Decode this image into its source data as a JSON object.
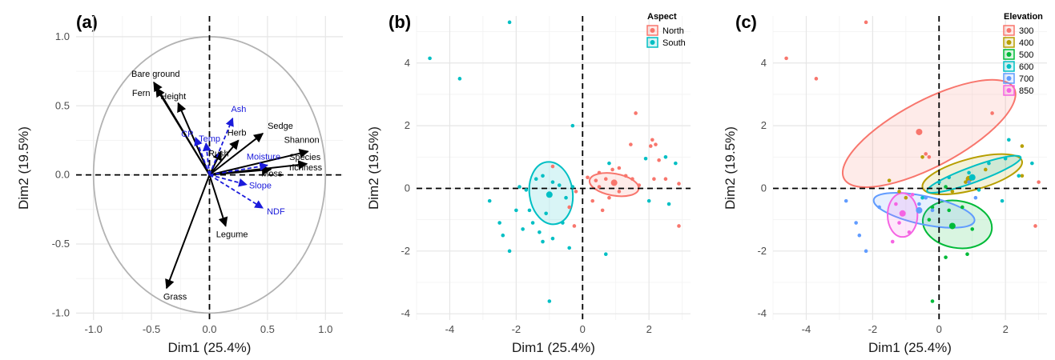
{
  "chart_data": [
    {
      "panel": "(a)",
      "type": "biplot",
      "xlabel": "Dim1 (25.4%)",
      "ylabel": "Dim2 (19.5%)",
      "xlim": [
        -1.15,
        1.15
      ],
      "ylim": [
        -1.05,
        1.15
      ],
      "xticks": [
        -1.0,
        -0.5,
        0.0,
        0.5,
        1.0
      ],
      "yticks": [
        -1.0,
        -0.5,
        0.0,
        0.5,
        1.0
      ],
      "xtick_labels": [
        "-1.0",
        "-0.5",
        "0.0",
        "0.5",
        "1.0"
      ],
      "ytick_labels": [
        "-1.0",
        "-0.5",
        "0.0",
        "0.5",
        "1.0"
      ],
      "circle_radius": 1.0,
      "grid": true,
      "colors": {
        "active": "#000000",
        "supplementary": "#1a1adb",
        "circle": "#b3b3b3"
      },
      "vectors": [
        {
          "name": "Bare ground",
          "x": -0.48,
          "y": 0.67,
          "style": "active"
        },
        {
          "name": "Fern",
          "x": -0.46,
          "y": 0.63,
          "style": "active"
        },
        {
          "name": "Height",
          "x": -0.27,
          "y": 0.52,
          "style": "active"
        },
        {
          "name": "Herb",
          "x": 0.25,
          "y": 0.25,
          "style": "active"
        },
        {
          "name": "Sedge",
          "x": 0.46,
          "y": 0.3,
          "style": "active"
        },
        {
          "name": "Rush",
          "x": 0.1,
          "y": 0.17,
          "style": "active"
        },
        {
          "name": "Shannon",
          "x": 0.85,
          "y": 0.17,
          "style": "active"
        },
        {
          "name": "Species richness",
          "x": 0.84,
          "y": 0.08,
          "style": "active"
        },
        {
          "name": "Moss",
          "x": 0.53,
          "y": 0.04,
          "style": "active"
        },
        {
          "name": "Legume",
          "x": 0.14,
          "y": -0.37,
          "style": "active"
        },
        {
          "name": "Grass",
          "x": -0.37,
          "y": -0.82,
          "style": "active"
        },
        {
          "name": "Ash",
          "x": 0.2,
          "y": 0.41,
          "style": "supplementary"
        },
        {
          "name": "CP",
          "x": -0.12,
          "y": 0.27,
          "style": "supplementary"
        },
        {
          "name": "Temp",
          "x": -0.03,
          "y": 0.23,
          "style": "supplementary"
        },
        {
          "name": "Moisture",
          "x": 0.5,
          "y": 0.07,
          "style": "supplementary"
        },
        {
          "name": "Slope",
          "x": 0.32,
          "y": -0.07,
          "style": "supplementary"
        },
        {
          "name": "NDF",
          "x": 0.46,
          "y": -0.24,
          "style": "supplementary"
        }
      ]
    },
    {
      "panel": "(b)",
      "type": "scatter",
      "xlabel": "Dim1 (25.4%)",
      "ylabel": "Dim2 (19.5%)",
      "xlim": [
        -5.0,
        3.25
      ],
      "ylim": [
        -4.2,
        5.5
      ],
      "xticks": [
        -4,
        -2,
        0,
        2
      ],
      "yticks": [
        -4,
        -2,
        0,
        2,
        4
      ],
      "xtick_labels": [
        "-4",
        "-2",
        "0",
        "2"
      ],
      "ytick_labels": [
        "-4",
        "-2",
        "0",
        "2",
        "4"
      ],
      "grid": true,
      "legend": {
        "title": "Aspect",
        "position": "top-right"
      },
      "series": [
        {
          "name": "North",
          "color": "#f8766d",
          "mean": [
            0.95,
            0.18
          ],
          "ellipse": {
            "cx": 0.95,
            "cy": 0.12,
            "rx": 0.75,
            "ry": 0.35,
            "angle": 10
          },
          "points": [
            [
              0.5,
              0.5
            ],
            [
              0.4,
              0.25
            ],
            [
              0.5,
              0.05
            ],
            [
              0.7,
              0.3
            ],
            [
              0.9,
              0.6
            ],
            [
              1.1,
              0.65
            ],
            [
              1.3,
              0.4
            ],
            [
              1.5,
              0.3
            ],
            [
              1.7,
              0.1
            ],
            [
              1.6,
              2.4
            ],
            [
              1.45,
              1.4
            ],
            [
              2.05,
              1.35
            ],
            [
              2.1,
              1.55
            ],
            [
              2.2,
              1.4
            ],
            [
              2.3,
              0.9
            ],
            [
              2.15,
              0.3
            ],
            [
              2.5,
              0.3
            ],
            [
              2.9,
              0.15
            ],
            [
              2.9,
              -1.2
            ],
            [
              0.3,
              -0.4
            ],
            [
              0.6,
              -0.7
            ],
            [
              0.8,
              -0.3
            ],
            [
              1.1,
              -0.1
            ],
            [
              -0.2,
              -0.1
            ],
            [
              -0.4,
              -0.6
            ],
            [
              -0.9,
              0.7
            ],
            [
              -0.25,
              -1.2
            ],
            [
              0.15,
              0.35
            ]
          ]
        },
        {
          "name": "South",
          "color": "#00bfc4",
          "mean": [
            -1.0,
            -0.2
          ],
          "ellipse": {
            "cx": -0.95,
            "cy": -0.15,
            "rx": 0.65,
            "ry": 1.0,
            "angle": -8
          },
          "points": [
            [
              -4.6,
              4.15
            ],
            [
              -3.7,
              3.5
            ],
            [
              -2.2,
              5.3
            ],
            [
              -0.3,
              2.0
            ],
            [
              -2.2,
              -2.0
            ],
            [
              -2.8,
              -0.4
            ],
            [
              -2.5,
              -1.1
            ],
            [
              -2.4,
              -1.5
            ],
            [
              -2.0,
              -0.7
            ],
            [
              -1.8,
              -1.3
            ],
            [
              -1.6,
              -0.7
            ],
            [
              -1.5,
              -1.1
            ],
            [
              -1.3,
              -1.4
            ],
            [
              -1.2,
              -1.7
            ],
            [
              -1.1,
              -0.8
            ],
            [
              -0.9,
              -1.6
            ],
            [
              -0.6,
              -1.1
            ],
            [
              -0.4,
              -1.9
            ],
            [
              -1.0,
              -3.6
            ],
            [
              0.7,
              -2.1
            ],
            [
              -1.7,
              -0.05
            ],
            [
              -1.9,
              0.05
            ],
            [
              -1.4,
              0.3
            ],
            [
              -1.2,
              0.4
            ],
            [
              -0.9,
              0.2
            ],
            [
              -0.7,
              0.1
            ],
            [
              -0.5,
              -0.3
            ],
            [
              -0.3,
              0.05
            ],
            [
              2.5,
              1.0
            ],
            [
              1.9,
              0.95
            ],
            [
              2.8,
              0.8
            ],
            [
              2.0,
              -0.4
            ],
            [
              2.6,
              -0.5
            ],
            [
              0.8,
              0.8
            ]
          ]
        }
      ]
    },
    {
      "panel": "(c)",
      "type": "scatter",
      "xlabel": "Dim1 (25.4%)",
      "ylabel": "Dim2 (19.5%)",
      "xlim": [
        -5.0,
        3.25
      ],
      "ylim": [
        -4.2,
        5.5
      ],
      "xticks": [
        -4,
        -2,
        0,
        2
      ],
      "yticks": [
        -4,
        -2,
        0,
        2,
        4
      ],
      "xtick_labels": [
        "-4",
        "-2",
        "0",
        "2"
      ],
      "ytick_labels": [
        "-4",
        "-2",
        "0",
        "2",
        "4"
      ],
      "grid": true,
      "legend": {
        "title": "Elevation",
        "position": "top-right"
      },
      "series": [
        {
          "name": "300",
          "color": "#f8766d",
          "mean": [
            -0.6,
            1.8
          ],
          "ellipse": {
            "cx": -0.3,
            "cy": 1.75,
            "rx": 2.9,
            "ry": 1.05,
            "angle": -28,
            "filled": true
          },
          "points": [
            [
              -4.6,
              4.15
            ],
            [
              -3.7,
              3.5
            ],
            [
              -2.2,
              5.3
            ],
            [
              1.6,
              2.4
            ],
            [
              -0.4,
              1.1
            ],
            [
              -0.3,
              1.0
            ],
            [
              3.0,
              0.2
            ],
            [
              2.9,
              -1.2
            ]
          ]
        },
        {
          "name": "400",
          "color": "#b79f00",
          "mean": [
            0.9,
            0.3
          ],
          "ellipse": {
            "cx": 1.0,
            "cy": 0.45,
            "rx": 1.55,
            "ry": 0.5,
            "angle": -15
          },
          "points": [
            [
              2.5,
              1.35
            ],
            [
              -0.5,
              1.0
            ],
            [
              1.4,
              0.6
            ],
            [
              0.8,
              0.2
            ],
            [
              2.5,
              0.4
            ],
            [
              -1.5,
              0.25
            ],
            [
              -1.2,
              -0.1
            ],
            [
              -1.0,
              -0.3
            ],
            [
              0.4,
              -0.1
            ]
          ]
        },
        {
          "name": "500",
          "color": "#00ba38",
          "mean": [
            0.4,
            -1.2
          ],
          "ellipse": {
            "cx": 0.55,
            "cy": -1.15,
            "rx": 1.05,
            "ry": 0.75,
            "angle": 10
          },
          "points": [
            [
              -0.2,
              -3.6
            ],
            [
              0.2,
              -2.2
            ],
            [
              0.85,
              -2.1
            ],
            [
              -0.3,
              -1.0
            ],
            [
              0.3,
              -0.7
            ],
            [
              0.7,
              -0.6
            ],
            [
              1.0,
              -1.3
            ],
            [
              -0.2,
              -0.6
            ],
            [
              0.2,
              0.05
            ]
          ]
        },
        {
          "name": "600",
          "color": "#00bfc4",
          "mean": [
            1.0,
            0.35
          ],
          "ellipse": {
            "cx": 1.05,
            "cy": 0.45,
            "rx": 1.5,
            "ry": 0.25,
            "angle": -20
          },
          "points": [
            [
              2.0,
              0.95
            ],
            [
              2.1,
              1.55
            ],
            [
              2.8,
              0.8
            ],
            [
              1.5,
              0.8
            ],
            [
              2.4,
              0.4
            ],
            [
              0.9,
              0.5
            ],
            [
              1.2,
              -0.05
            ],
            [
              1.9,
              -0.4
            ],
            [
              0.3,
              0.35
            ],
            [
              0.0,
              0.2
            ],
            [
              -0.5,
              -0.3
            ]
          ]
        },
        {
          "name": "700",
          "color": "#619cff",
          "mean": [
            -0.6,
            -0.7
          ],
          "ellipse": {
            "cx": -0.45,
            "cy": -0.7,
            "rx": 1.55,
            "ry": 0.45,
            "angle": 12
          },
          "points": [
            [
              -2.2,
              -2.0
            ],
            [
              -2.8,
              -0.4
            ],
            [
              -2.5,
              -1.1
            ],
            [
              -2.4,
              -1.5
            ],
            [
              -1.8,
              -0.6
            ],
            [
              -0.4,
              -0.3
            ],
            [
              -0.2,
              -0.7
            ],
            [
              1.1,
              -0.3
            ],
            [
              0.9,
              0.2
            ],
            [
              -0.6,
              -0.5
            ]
          ]
        },
        {
          "name": "850",
          "color": "#f564e3",
          "mean": [
            -1.1,
            -0.8
          ],
          "ellipse": {
            "cx": -1.1,
            "cy": -0.85,
            "rx": 0.45,
            "ry": 0.7,
            "angle": 0
          },
          "points": [
            [
              -1.4,
              -1.7
            ],
            [
              -1.3,
              -0.5
            ],
            [
              -0.9,
              -1.4
            ],
            [
              -0.8,
              -0.2
            ],
            [
              -1.2,
              -1.1
            ]
          ]
        }
      ]
    }
  ]
}
